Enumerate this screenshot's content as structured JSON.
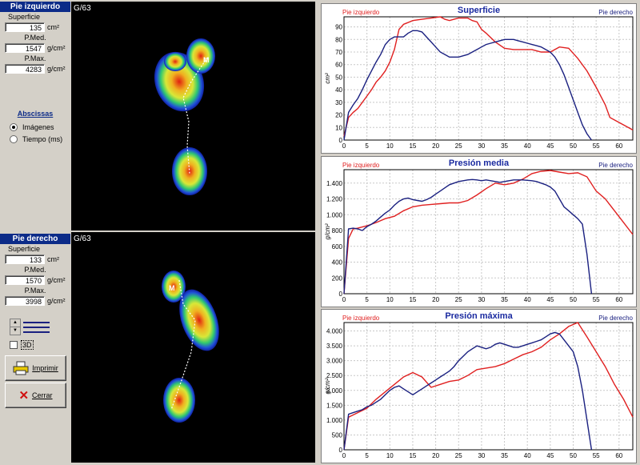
{
  "left_foot": {
    "header": "Pie izquierdo",
    "fields": [
      {
        "label": "Superficie",
        "value": "135",
        "unit": "cm²"
      },
      {
        "label": "P.Med.",
        "value": "1547",
        "unit": "g/cm²"
      },
      {
        "label": "P.Max.",
        "value": "4283",
        "unit": "g/cm²"
      }
    ],
    "image_label": "G/63"
  },
  "abscissas": {
    "title": "Abscissas",
    "options": [
      {
        "label": "Imágenes",
        "selected": true
      },
      {
        "label": "Tiempo (ms)",
        "selected": false
      }
    ]
  },
  "right_foot": {
    "header": "Pie derecho",
    "fields": [
      {
        "label": "Superficie",
        "value": "133",
        "unit": "cm²"
      },
      {
        "label": "P.Med.",
        "value": "1570",
        "unit": "g/cm²"
      },
      {
        "label": "P.Max.",
        "value": "3998",
        "unit": "g/cm²"
      }
    ],
    "image_label": "G/63"
  },
  "controls": {
    "checkbox_3d_label": "3D",
    "print_label": "Imprimir",
    "close_label": "Cerrar"
  },
  "colors": {
    "left": "#e02020",
    "right": "#1a2080",
    "header_bg": "#0c2b88"
  },
  "chart_data": [
    {
      "type": "line",
      "title": "Superficie",
      "ylabel": "cm²",
      "legend": [
        "Pie izquierdo",
        "Pie derecho"
      ],
      "xlim": [
        0,
        63
      ],
      "ylim": [
        0,
        98
      ],
      "xticks": [
        0,
        5,
        10,
        15,
        20,
        25,
        30,
        35,
        40,
        45,
        50,
        55,
        60
      ],
      "yticks": [
        0,
        10,
        20,
        30,
        40,
        50,
        60,
        70,
        80,
        90
      ],
      "ytick_labels": [
        "0",
        "10",
        "20",
        "30",
        "40",
        "50",
        "60",
        "70",
        "80",
        "90"
      ],
      "series": [
        {
          "name": "Pie izquierdo",
          "color": "#e02020",
          "x": [
            0,
            1,
            2,
            3,
            4,
            5,
            6,
            7,
            8,
            9,
            10,
            11,
            12,
            13,
            15,
            17,
            19,
            21,
            22,
            23,
            24,
            25,
            27,
            28,
            29,
            30,
            31,
            33,
            35,
            37,
            39,
            41,
            43,
            45,
            47,
            49,
            51,
            53,
            55,
            57,
            58,
            60,
            62,
            63
          ],
          "y": [
            3,
            18,
            22,
            25,
            30,
            35,
            40,
            46,
            50,
            55,
            62,
            72,
            88,
            92,
            95,
            96,
            97,
            98,
            96,
            95,
            96,
            97,
            97,
            95,
            94,
            88,
            85,
            78,
            73,
            72,
            72,
            72,
            70,
            70,
            74,
            73,
            65,
            55,
            42,
            28,
            18,
            14,
            10,
            8
          ]
        },
        {
          "name": "Pie derecho",
          "color": "#1a2080",
          "x": [
            0,
            1,
            2,
            3,
            4,
            5,
            6,
            7,
            8,
            9,
            10,
            11,
            12,
            13,
            14,
            15,
            16,
            17,
            18,
            19,
            20,
            21,
            22,
            23,
            24,
            25,
            26,
            27,
            28,
            29,
            30,
            31,
            32,
            33,
            34,
            35,
            36,
            37,
            38,
            39,
            40,
            41,
            42,
            43,
            44,
            45,
            46,
            47,
            48,
            49,
            50,
            51,
            52,
            53,
            54
          ],
          "y": [
            0,
            22,
            28,
            33,
            40,
            48,
            55,
            62,
            68,
            76,
            80,
            82,
            82,
            82,
            85,
            87,
            87,
            86,
            82,
            78,
            74,
            70,
            68,
            66,
            66,
            66,
            67,
            68,
            70,
            72,
            74,
            76,
            77,
            78,
            79,
            80,
            80,
            80,
            79,
            78,
            77,
            76,
            75,
            74,
            72,
            70,
            66,
            60,
            52,
            42,
            32,
            22,
            12,
            5,
            0
          ]
        }
      ]
    },
    {
      "type": "line",
      "title": "Presión media",
      "ylabel": "g/cm²",
      "legend": [
        "Pie izquierdo",
        "Pie derecho"
      ],
      "xlim": [
        0,
        63
      ],
      "ylim": [
        0,
        1570
      ],
      "xticks": [
        0,
        5,
        10,
        15,
        20,
        25,
        30,
        35,
        40,
        45,
        50,
        55,
        60
      ],
      "yticks": [
        0,
        200,
        400,
        600,
        800,
        1000,
        1200,
        1400
      ],
      "ytick_labels": [
        "0",
        "200",
        "400",
        "600",
        "800",
        "1.000",
        "1.200",
        "1.400"
      ],
      "series": [
        {
          "name": "Pie izquierdo",
          "color": "#e02020",
          "x": [
            0,
            1,
            2,
            3,
            5,
            7,
            9,
            11,
            13,
            15,
            17,
            19,
            21,
            23,
            25,
            27,
            29,
            31,
            33,
            35,
            37,
            39,
            41,
            43,
            45,
            47,
            49,
            51,
            53,
            55,
            57,
            59,
            61,
            63
          ],
          "y": [
            0,
            700,
            820,
            830,
            860,
            900,
            950,
            980,
            1050,
            1100,
            1120,
            1130,
            1140,
            1150,
            1150,
            1180,
            1250,
            1330,
            1400,
            1380,
            1400,
            1450,
            1520,
            1550,
            1560,
            1540,
            1520,
            1530,
            1480,
            1300,
            1200,
            1050,
            900,
            750
          ]
        },
        {
          "name": "Pie derecho",
          "color": "#1a2080",
          "x": [
            0,
            1,
            2,
            3,
            4,
            5,
            6,
            7,
            8,
            9,
            10,
            11,
            12,
            13,
            14,
            15,
            16,
            17,
            18,
            19,
            20,
            21,
            22,
            23,
            24,
            25,
            26,
            27,
            28,
            29,
            30,
            31,
            32,
            33,
            34,
            35,
            36,
            37,
            38,
            39,
            40,
            41,
            42,
            43,
            44,
            45,
            46,
            47,
            48,
            49,
            50,
            51,
            52,
            53,
            54
          ],
          "y": [
            0,
            820,
            830,
            820,
            800,
            850,
            880,
            920,
            970,
            1020,
            1060,
            1120,
            1170,
            1200,
            1210,
            1190,
            1180,
            1170,
            1190,
            1220,
            1260,
            1300,
            1340,
            1380,
            1400,
            1420,
            1430,
            1440,
            1445,
            1440,
            1430,
            1440,
            1430,
            1420,
            1410,
            1420,
            1430,
            1440,
            1440,
            1440,
            1435,
            1430,
            1420,
            1400,
            1380,
            1350,
            1300,
            1200,
            1100,
            1050,
            1000,
            950,
            880,
            500,
            0
          ]
        }
      ]
    },
    {
      "type": "line",
      "title": "Presión máxima",
      "ylabel": "g/cm²",
      "legend": [
        "Pie izquierdo",
        "Pie derecho"
      ],
      "xlim": [
        0,
        63
      ],
      "ylim": [
        0,
        4283
      ],
      "xticks": [
        0,
        5,
        10,
        15,
        20,
        25,
        30,
        35,
        40,
        45,
        50,
        55,
        60
      ],
      "yticks": [
        0,
        500,
        1000,
        1500,
        2000,
        2500,
        3000,
        3500,
        4000
      ],
      "ytick_labels": [
        "0",
        "500",
        "1.000",
        "1.500",
        "2.000",
        "2.500",
        "3.000",
        "3.500",
        "4.000"
      ],
      "series": [
        {
          "name": "Pie izquierdo",
          "color": "#e02020",
          "x": [
            0,
            1,
            3,
            5,
            7,
            9,
            11,
            13,
            15,
            17,
            19,
            21,
            23,
            25,
            27,
            29,
            31,
            33,
            35,
            37,
            39,
            41,
            43,
            45,
            47,
            49,
            51,
            53,
            55,
            57,
            59,
            61,
            63
          ],
          "y": [
            0,
            1100,
            1250,
            1400,
            1700,
            1950,
            2200,
            2450,
            2600,
            2450,
            2100,
            2200,
            2300,
            2350,
            2500,
            2700,
            2750,
            2800,
            2900,
            3050,
            3200,
            3300,
            3450,
            3700,
            3900,
            4150,
            4283,
            3800,
            3300,
            2800,
            2200,
            1700,
            1100
          ]
        },
        {
          "name": "Pie derecho",
          "color": "#1a2080",
          "x": [
            0,
            1,
            2,
            3,
            4,
            5,
            6,
            7,
            8,
            9,
            10,
            11,
            12,
            13,
            14,
            15,
            16,
            17,
            18,
            19,
            20,
            21,
            22,
            23,
            24,
            25,
            26,
            27,
            28,
            29,
            30,
            31,
            32,
            33,
            34,
            35,
            36,
            37,
            38,
            39,
            40,
            41,
            42,
            43,
            44,
            45,
            46,
            47,
            48,
            49,
            50,
            51,
            52,
            53,
            54
          ],
          "y": [
            0,
            1200,
            1250,
            1300,
            1350,
            1450,
            1500,
            1600,
            1700,
            1850,
            2000,
            2100,
            2150,
            2050,
            1950,
            1850,
            1950,
            2050,
            2150,
            2250,
            2350,
            2450,
            2550,
            2650,
            2800,
            3000,
            3150,
            3300,
            3400,
            3500,
            3450,
            3400,
            3450,
            3550,
            3600,
            3550,
            3500,
            3450,
            3450,
            3500,
            3550,
            3600,
            3650,
            3700,
            3800,
            3900,
            3950,
            3900,
            3700,
            3500,
            3300,
            2800,
            2000,
            1000,
            0
          ]
        }
      ]
    }
  ]
}
